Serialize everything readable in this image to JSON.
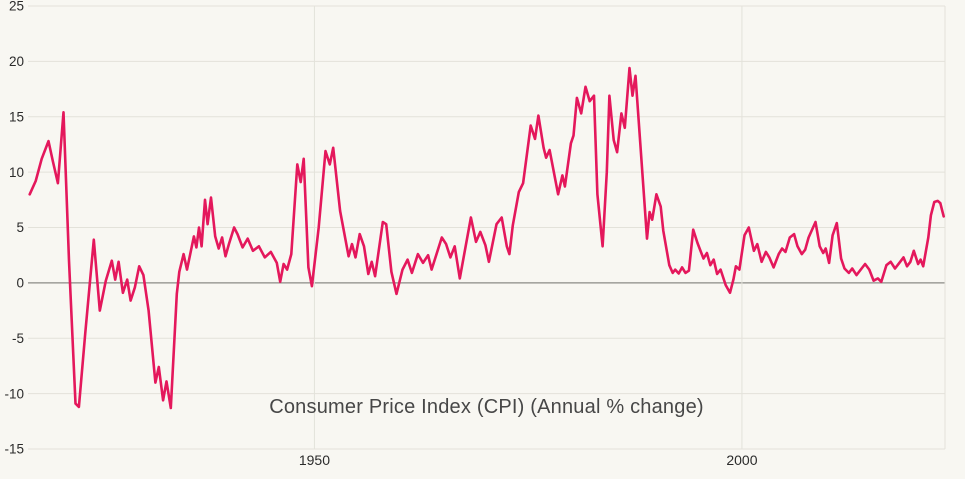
{
  "page": {
    "background": "#F8F7F2"
  },
  "chart_data": {
    "type": "line",
    "title": "Consumer Price Index (CPI) (Annual % change)",
    "xlabel": "",
    "ylabel": "",
    "legend_position": "none",
    "grid": true,
    "axes": {
      "x": {
        "min": 1916.5,
        "max": 2023.75,
        "ticks": [
          {
            "label": "1950",
            "value": 1950
          },
          {
            "label": "2000",
            "value": 2000
          }
        ],
        "edge_line_at_max": true
      },
      "y": {
        "min": -15,
        "max": 25,
        "ticks": [
          25,
          20,
          15,
          10,
          5,
          0,
          -5,
          -10,
          -15
        ],
        "zero_line_emphasized": true
      }
    },
    "colors": {
      "line": "#E4185C",
      "grid": "#E3E2DA",
      "zero_line": "#8B8B86",
      "tick_label": "#2B2B2B",
      "title": "#474747",
      "background": "#F8F7F2"
    },
    "series": [
      {
        "name": "CPI annual % change",
        "color": "#E4185C",
        "points": [
          [
            1916.7,
            8.0
          ],
          [
            1917.4,
            9.2
          ],
          [
            1918.1,
            11.2
          ],
          [
            1918.9,
            12.8
          ],
          [
            1919.4,
            11.0
          ],
          [
            1920.0,
            9.0
          ],
          [
            1920.65,
            15.4
          ],
          [
            1921.3,
            2.0
          ],
          [
            1922.05,
            -10.9
          ],
          [
            1922.45,
            -11.2
          ],
          [
            1923.2,
            -4.5
          ],
          [
            1924.2,
            3.9
          ],
          [
            1924.9,
            -2.5
          ],
          [
            1925.6,
            0.2
          ],
          [
            1926.3,
            2.0
          ],
          [
            1926.7,
            0.3
          ],
          [
            1927.1,
            1.9
          ],
          [
            1927.6,
            -0.9
          ],
          [
            1928.1,
            0.3
          ],
          [
            1928.5,
            -1.6
          ],
          [
            1929.0,
            -0.4
          ],
          [
            1929.5,
            1.5
          ],
          [
            1930.0,
            0.7
          ],
          [
            1930.6,
            -2.5
          ],
          [
            1931.4,
            -9.0
          ],
          [
            1931.8,
            -7.6
          ],
          [
            1932.3,
            -10.6
          ],
          [
            1932.7,
            -8.9
          ],
          [
            1933.2,
            -11.3
          ],
          [
            1933.9,
            -1.0
          ],
          [
            1934.2,
            1.0
          ],
          [
            1934.7,
            2.6
          ],
          [
            1935.1,
            1.2
          ],
          [
            1935.9,
            4.2
          ],
          [
            1936.2,
            3.2
          ],
          [
            1936.5,
            5.0
          ],
          [
            1936.8,
            3.3
          ],
          [
            1937.2,
            7.5
          ],
          [
            1937.5,
            5.3
          ],
          [
            1937.9,
            7.7
          ],
          [
            1938.4,
            4.2
          ],
          [
            1938.8,
            3.1
          ],
          [
            1939.2,
            4.1
          ],
          [
            1939.6,
            2.4
          ],
          [
            1940.0,
            3.5
          ],
          [
            1940.6,
            5.0
          ],
          [
            1941.0,
            4.4
          ],
          [
            1941.6,
            3.2
          ],
          [
            1942.2,
            4.0
          ],
          [
            1942.8,
            2.9
          ],
          [
            1943.5,
            3.3
          ],
          [
            1944.2,
            2.3
          ],
          [
            1944.9,
            2.8
          ],
          [
            1945.6,
            1.8
          ],
          [
            1946.0,
            0.1
          ],
          [
            1946.4,
            1.7
          ],
          [
            1946.8,
            1.2
          ],
          [
            1947.3,
            2.6
          ],
          [
            1948.0,
            10.7
          ],
          [
            1948.4,
            9.1
          ],
          [
            1948.75,
            11.2
          ],
          [
            1949.3,
            1.4
          ],
          [
            1949.7,
            -0.3
          ],
          [
            1950.5,
            5.0
          ],
          [
            1951.3,
            11.9
          ],
          [
            1951.8,
            10.7
          ],
          [
            1952.2,
            12.2
          ],
          [
            1953.0,
            6.5
          ],
          [
            1954.0,
            2.4
          ],
          [
            1954.4,
            3.5
          ],
          [
            1954.8,
            2.3
          ],
          [
            1955.3,
            4.4
          ],
          [
            1955.8,
            3.3
          ],
          [
            1956.3,
            0.8
          ],
          [
            1956.7,
            1.9
          ],
          [
            1957.1,
            0.6
          ],
          [
            1958.0,
            5.5
          ],
          [
            1958.4,
            5.3
          ],
          [
            1959.0,
            1.0
          ],
          [
            1959.6,
            -1.0
          ],
          [
            1960.3,
            1.2
          ],
          [
            1960.9,
            2.1
          ],
          [
            1961.4,
            0.9
          ],
          [
            1962.1,
            2.6
          ],
          [
            1962.7,
            1.8
          ],
          [
            1963.3,
            2.5
          ],
          [
            1963.7,
            1.2
          ],
          [
            1964.9,
            4.1
          ],
          [
            1965.4,
            3.5
          ],
          [
            1965.9,
            2.3
          ],
          [
            1966.4,
            3.3
          ],
          [
            1967.0,
            0.4
          ],
          [
            1968.3,
            5.9
          ],
          [
            1968.9,
            3.7
          ],
          [
            1969.4,
            4.6
          ],
          [
            1970.0,
            3.4
          ],
          [
            1970.4,
            1.9
          ],
          [
            1971.3,
            5.3
          ],
          [
            1971.9,
            5.9
          ],
          [
            1972.5,
            3.3
          ],
          [
            1972.8,
            2.6
          ],
          [
            1973.2,
            5.2
          ],
          [
            1973.9,
            8.2
          ],
          [
            1974.4,
            9.0
          ],
          [
            1975.3,
            14.2
          ],
          [
            1975.8,
            13.0
          ],
          [
            1976.2,
            15.1
          ],
          [
            1976.8,
            12.2
          ],
          [
            1977.1,
            11.3
          ],
          [
            1977.5,
            12.0
          ],
          [
            1978.5,
            8.0
          ],
          [
            1979.0,
            9.7
          ],
          [
            1979.3,
            8.7
          ],
          [
            1980.0,
            12.6
          ],
          [
            1980.3,
            13.3
          ],
          [
            1980.7,
            16.7
          ],
          [
            1981.2,
            15.3
          ],
          [
            1981.7,
            17.7
          ],
          [
            1982.2,
            16.4
          ],
          [
            1982.7,
            16.9
          ],
          [
            1983.1,
            8.0
          ],
          [
            1983.7,
            3.3
          ],
          [
            1984.2,
            10.0
          ],
          [
            1984.5,
            16.9
          ],
          [
            1985.0,
            12.9
          ],
          [
            1985.4,
            11.8
          ],
          [
            1985.9,
            15.3
          ],
          [
            1986.3,
            14.0
          ],
          [
            1986.85,
            19.4
          ],
          [
            1987.2,
            16.9
          ],
          [
            1987.55,
            18.7
          ],
          [
            1988.1,
            12.7
          ],
          [
            1988.9,
            4.0
          ],
          [
            1989.2,
            6.4
          ],
          [
            1989.5,
            5.7
          ],
          [
            1990.0,
            8.0
          ],
          [
            1990.5,
            6.9
          ],
          [
            1990.8,
            4.7
          ],
          [
            1991.5,
            1.6
          ],
          [
            1991.9,
            0.9
          ],
          [
            1992.2,
            1.2
          ],
          [
            1992.6,
            0.85
          ],
          [
            1993.0,
            1.4
          ],
          [
            1993.4,
            0.9
          ],
          [
            1993.8,
            1.1
          ],
          [
            1994.3,
            4.8
          ],
          [
            1994.8,
            3.6
          ],
          [
            1995.2,
            2.8
          ],
          [
            1995.5,
            2.2
          ],
          [
            1995.9,
            2.7
          ],
          [
            1996.3,
            1.6
          ],
          [
            1996.7,
            2.1
          ],
          [
            1997.1,
            0.8
          ],
          [
            1997.5,
            1.2
          ],
          [
            1998.1,
            -0.2
          ],
          [
            1998.6,
            -0.9
          ],
          [
            1999.0,
            0.3
          ],
          [
            1999.3,
            1.5
          ],
          [
            1999.7,
            1.2
          ],
          [
            2000.3,
            4.3
          ],
          [
            2000.8,
            5.0
          ],
          [
            2001.4,
            2.9
          ],
          [
            2001.8,
            3.5
          ],
          [
            2002.3,
            1.9
          ],
          [
            2002.8,
            2.8
          ],
          [
            2003.2,
            2.3
          ],
          [
            2003.7,
            1.4
          ],
          [
            2004.3,
            2.6
          ],
          [
            2004.7,
            3.1
          ],
          [
            2005.1,
            2.8
          ],
          [
            2005.6,
            4.1
          ],
          [
            2006.1,
            4.4
          ],
          [
            2006.5,
            3.3
          ],
          [
            2007.0,
            2.6
          ],
          [
            2007.4,
            3.0
          ],
          [
            2007.8,
            4.1
          ],
          [
            2008.6,
            5.5
          ],
          [
            2009.1,
            3.3
          ],
          [
            2009.5,
            2.7
          ],
          [
            2009.8,
            3.1
          ],
          [
            2010.2,
            1.8
          ],
          [
            2010.6,
            4.3
          ],
          [
            2011.1,
            5.4
          ],
          [
            2011.6,
            2.2
          ],
          [
            2012.0,
            1.3
          ],
          [
            2012.5,
            0.9
          ],
          [
            2012.9,
            1.3
          ],
          [
            2013.4,
            0.7
          ],
          [
            2014.0,
            1.3
          ],
          [
            2014.4,
            1.7
          ],
          [
            2014.9,
            1.2
          ],
          [
            2015.4,
            0.2
          ],
          [
            2015.9,
            0.4
          ],
          [
            2016.3,
            0.1
          ],
          [
            2016.9,
            1.6
          ],
          [
            2017.4,
            1.9
          ],
          [
            2017.9,
            1.3
          ],
          [
            2018.4,
            1.8
          ],
          [
            2018.9,
            2.3
          ],
          [
            2019.3,
            1.5
          ],
          [
            2019.7,
            1.9
          ],
          [
            2020.1,
            2.9
          ],
          [
            2020.6,
            1.7
          ],
          [
            2020.9,
            2.1
          ],
          [
            2021.2,
            1.5
          ],
          [
            2021.8,
            4.1
          ],
          [
            2022.1,
            6.1
          ],
          [
            2022.5,
            7.3
          ],
          [
            2022.9,
            7.4
          ],
          [
            2023.2,
            7.2
          ],
          [
            2023.4,
            6.6
          ],
          [
            2023.6,
            6.0
          ]
        ]
      }
    ]
  }
}
